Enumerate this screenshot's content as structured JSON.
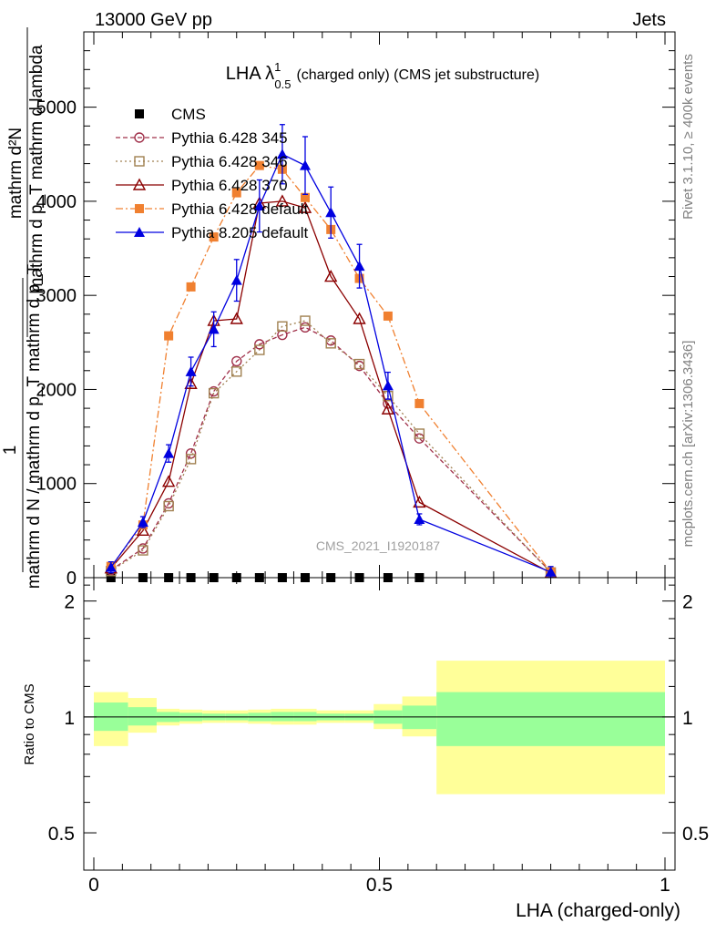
{
  "header": {
    "left": "13000 GeV pp",
    "right": "Jets"
  },
  "side_labels": {
    "rivet": "Rivet 3.1.10, ≥ 400k events",
    "mcplots": "mcplots.cern.ch [arXiv:1306.3436]"
  },
  "chart_data": [
    {
      "type": "line",
      "title_prefix": "LHA λ",
      "title_sup": "1",
      "title_sub": "0.5",
      "title_suffix": "(charged only) (CMS jet substructure)",
      "ylabel_numerator": "mathrm d²N",
      "ylabel_denominator": "mathrm d p_T mathrm d lambda",
      "ylabel_numerator_2": "1",
      "ylabel_denominator_2": "mathrm d N / mathrm d p_T mathrm d p_T",
      "watermark": "CMS_2021_I1920187",
      "xlim": [
        0,
        1
      ],
      "ylim": [
        0,
        5800
      ],
      "yticks": [
        0,
        1000,
        2000,
        3000,
        4000,
        5000
      ],
      "ytick_labels": [
        "0",
        "1000",
        "2000",
        "3000",
        "4000",
        "5000"
      ],
      "x": [
        0.03,
        0.086,
        0.131,
        0.17,
        0.21,
        0.25,
        0.29,
        0.33,
        0.37,
        0.415,
        0.465,
        0.515,
        0.57,
        0.8
      ],
      "series": [
        {
          "name": "CMS",
          "color": "#000000",
          "marker": "square-filled",
          "values": [
            0,
            0,
            0,
            0,
            0,
            0,
            0,
            0,
            0,
            0,
            0,
            0,
            0,
            null
          ]
        },
        {
          "name": "Pythia 6.428 345",
          "color": "#a0304a",
          "marker": "circle-open",
          "dash": "5,3",
          "values": [
            80,
            310,
            790,
            1320,
            1980,
            2300,
            2480,
            2580,
            2660,
            2520,
            2250,
            1850,
            1480,
            60
          ]
        },
        {
          "name": "Pythia 6.428 346",
          "color": "#a08050",
          "marker": "square-open",
          "dash": "2,3",
          "values": [
            70,
            290,
            760,
            1260,
            1960,
            2190,
            2420,
            2670,
            2730,
            2490,
            2270,
            1930,
            1530,
            55
          ]
        },
        {
          "name": "Pythia 6.428 370",
          "color": "#8b0000",
          "marker": "triangle-open",
          "dash": "",
          "values": [
            100,
            500,
            1020,
            2060,
            2730,
            2750,
            3980,
            4000,
            3930,
            3200,
            2750,
            1790,
            800,
            50
          ]
        },
        {
          "name": "Pythia 6.428 default",
          "color": "#f08030",
          "marker": "square-filled",
          "dash": "8,3,2,3",
          "values": [
            120,
            560,
            2570,
            3090,
            3620,
            4090,
            4380,
            4340,
            4040,
            3700,
            3180,
            2780,
            1850,
            60
          ]
        },
        {
          "name": "Pythia 8.205 default",
          "color": "#0000e0",
          "marker": "triangle-filled",
          "dash": "",
          "values": [
            110,
            590,
            1320,
            2190,
            2640,
            3160,
            3950,
            4500,
            4380,
            3880,
            3310,
            2040,
            620,
            60
          ]
        }
      ]
    },
    {
      "type": "area",
      "ylabel": "Ratio to CMS",
      "xlabel": "LHA (charged-only)",
      "xlim": [
        0,
        1
      ],
      "ylim": [
        0.4,
        2.3
      ],
      "yscale": "log",
      "yticks": [
        0.5,
        1,
        2
      ],
      "ytick_labels": [
        "0.5",
        "1",
        "2"
      ],
      "xticks": [
        0,
        0.5,
        1
      ],
      "xtick_labels": [
        "0",
        "0.5",
        "1"
      ],
      "reference": 1,
      "bins": [
        {
          "lo": 0.0,
          "hi": 0.06,
          "inner": [
            0.92,
            1.09
          ],
          "outer": [
            0.84,
            1.16
          ]
        },
        {
          "lo": 0.06,
          "hi": 0.11,
          "inner": [
            0.95,
            1.06
          ],
          "outer": [
            0.91,
            1.12
          ]
        },
        {
          "lo": 0.11,
          "hi": 0.15,
          "inner": [
            0.97,
            1.03
          ],
          "outer": [
            0.95,
            1.05
          ]
        },
        {
          "lo": 0.15,
          "hi": 0.19,
          "inner": [
            0.975,
            1.025
          ],
          "outer": [
            0.96,
            1.045
          ]
        },
        {
          "lo": 0.19,
          "hi": 0.23,
          "inner": [
            0.98,
            1.02
          ],
          "outer": [
            0.965,
            1.04
          ]
        },
        {
          "lo": 0.23,
          "hi": 0.27,
          "inner": [
            0.98,
            1.02
          ],
          "outer": [
            0.965,
            1.04
          ]
        },
        {
          "lo": 0.27,
          "hi": 0.31,
          "inner": [
            0.975,
            1.025
          ],
          "outer": [
            0.96,
            1.045
          ]
        },
        {
          "lo": 0.31,
          "hi": 0.35,
          "inner": [
            0.975,
            1.03
          ],
          "outer": [
            0.955,
            1.05
          ]
        },
        {
          "lo": 0.35,
          "hi": 0.39,
          "inner": [
            0.975,
            1.03
          ],
          "outer": [
            0.955,
            1.05
          ]
        },
        {
          "lo": 0.39,
          "hi": 0.44,
          "inner": [
            0.98,
            1.02
          ],
          "outer": [
            0.965,
            1.04
          ]
        },
        {
          "lo": 0.44,
          "hi": 0.49,
          "inner": [
            0.98,
            1.02
          ],
          "outer": [
            0.965,
            1.04
          ]
        },
        {
          "lo": 0.49,
          "hi": 0.54,
          "inner": [
            0.96,
            1.04
          ],
          "outer": [
            0.93,
            1.08
          ]
        },
        {
          "lo": 0.54,
          "hi": 0.6,
          "inner": [
            0.93,
            1.07
          ],
          "outer": [
            0.89,
            1.13
          ]
        },
        {
          "lo": 0.6,
          "hi": 1.0,
          "inner": [
            0.84,
            1.16
          ],
          "outer": [
            0.63,
            1.4
          ]
        }
      ]
    }
  ]
}
